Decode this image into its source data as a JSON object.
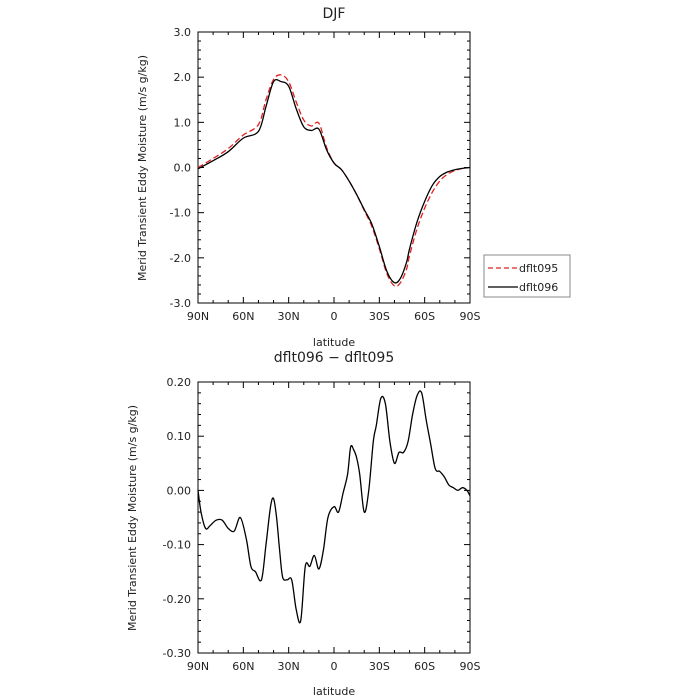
{
  "chart_data": [
    {
      "type": "line",
      "title": "DJF",
      "xlabel": "latitude",
      "ylabel": "Merid Transient Eddy Moisture  (m/s g/kg)",
      "x_tick_labels": [
        "90N",
        "60N",
        "30N",
        "0",
        "30S",
        "60S",
        "90S"
      ],
      "y_tick_labels": [
        "3.0",
        "2.0",
        "1.0",
        "0.0",
        "-1.0",
        "-2.0",
        "-3.0"
      ],
      "ylim": [
        -3.0,
        3.0
      ],
      "xlim_latitude": [
        90,
        -90
      ],
      "legend_position": "right",
      "series": [
        {
          "name": "dflt095",
          "color": "#e02020",
          "dash": "dashed",
          "x": [
            90,
            80,
            70,
            60,
            50,
            45,
            40,
            35,
            30,
            25,
            20,
            15,
            10,
            5,
            0,
            -5,
            -10,
            -15,
            -20,
            -25,
            -30,
            -35,
            -40,
            -44,
            -48,
            -50,
            -55,
            -60,
            -65,
            -70,
            -75,
            -80,
            -85,
            -90
          ],
          "y": [
            0.0,
            0.2,
            0.42,
            0.72,
            0.95,
            1.5,
            1.95,
            2.05,
            1.9,
            1.45,
            1.05,
            0.92,
            0.98,
            0.45,
            0.1,
            -0.05,
            -0.3,
            -0.6,
            -0.95,
            -1.3,
            -1.8,
            -2.35,
            -2.62,
            -2.55,
            -2.25,
            -1.95,
            -1.35,
            -0.9,
            -0.55,
            -0.3,
            -0.15,
            -0.07,
            -0.02,
            0.0
          ]
        },
        {
          "name": "dflt096",
          "color": "#000000",
          "dash": "solid",
          "x": [
            90,
            80,
            70,
            60,
            50,
            45,
            40,
            35,
            30,
            25,
            20,
            15,
            10,
            5,
            0,
            -5,
            -10,
            -15,
            -20,
            -25,
            -30,
            -35,
            -40,
            -44,
            -48,
            -50,
            -55,
            -60,
            -65,
            -70,
            -75,
            -80,
            -85,
            -90
          ],
          "y": [
            -0.03,
            0.15,
            0.35,
            0.65,
            0.8,
            1.35,
            1.9,
            1.9,
            1.8,
            1.3,
            0.9,
            0.82,
            0.85,
            0.4,
            0.1,
            -0.05,
            -0.3,
            -0.6,
            -0.93,
            -1.25,
            -1.75,
            -2.3,
            -2.55,
            -2.45,
            -2.1,
            -1.8,
            -1.2,
            -0.75,
            -0.4,
            -0.2,
            -0.1,
            -0.05,
            -0.02,
            0.0
          ]
        }
      ]
    },
    {
      "type": "line",
      "title": "dflt096 − dflt095",
      "xlabel": "latitude",
      "ylabel": "Merid Transient Eddy Moisture  (m/s g/kg)",
      "x_tick_labels": [
        "90N",
        "60N",
        "30N",
        "0",
        "30S",
        "60S",
        "90S"
      ],
      "y_tick_labels": [
        "0.20",
        "0.10",
        "0.00",
        "-0.10",
        "-0.20",
        "-0.30"
      ],
      "ylim": [
        -0.3,
        0.2
      ],
      "xlim_latitude": [
        90,
        -90
      ],
      "series": [
        {
          "color": "#000000",
          "dash": "solid",
          "x": [
            90,
            88,
            85,
            82,
            78,
            74,
            70,
            66,
            62,
            58,
            55,
            52,
            48,
            45,
            42,
            40,
            38,
            36,
            34,
            31,
            28,
            25,
            22,
            19,
            16,
            13,
            10,
            7,
            4,
            0,
            -3,
            -6,
            -9,
            -11,
            -13,
            -15,
            -17,
            -20,
            -23,
            -26,
            -28,
            -31,
            -34,
            -37,
            -40,
            -43,
            -46,
            -49,
            -52,
            -55,
            -58,
            -61,
            -64,
            -67,
            -70,
            -73,
            -76,
            -79,
            -82,
            -85,
            -88,
            -90
          ],
          "y": [
            0.0,
            -0.04,
            -0.07,
            -0.065,
            -0.055,
            -0.055,
            -0.07,
            -0.075,
            -0.05,
            -0.09,
            -0.14,
            -0.15,
            -0.165,
            -0.1,
            -0.03,
            -0.015,
            -0.05,
            -0.11,
            -0.16,
            -0.165,
            -0.165,
            -0.22,
            -0.24,
            -0.14,
            -0.14,
            -0.12,
            -0.145,
            -0.11,
            -0.05,
            -0.03,
            -0.04,
            -0.005,
            0.03,
            0.08,
            0.075,
            0.06,
            0.03,
            -0.04,
            0.0,
            0.09,
            0.12,
            0.17,
            0.16,
            0.09,
            0.05,
            0.07,
            0.07,
            0.09,
            0.14,
            0.175,
            0.18,
            0.13,
            0.085,
            0.04,
            0.035,
            0.025,
            0.01,
            0.005,
            0.0,
            0.005,
            0.0,
            -0.01
          ]
        }
      ]
    }
  ]
}
